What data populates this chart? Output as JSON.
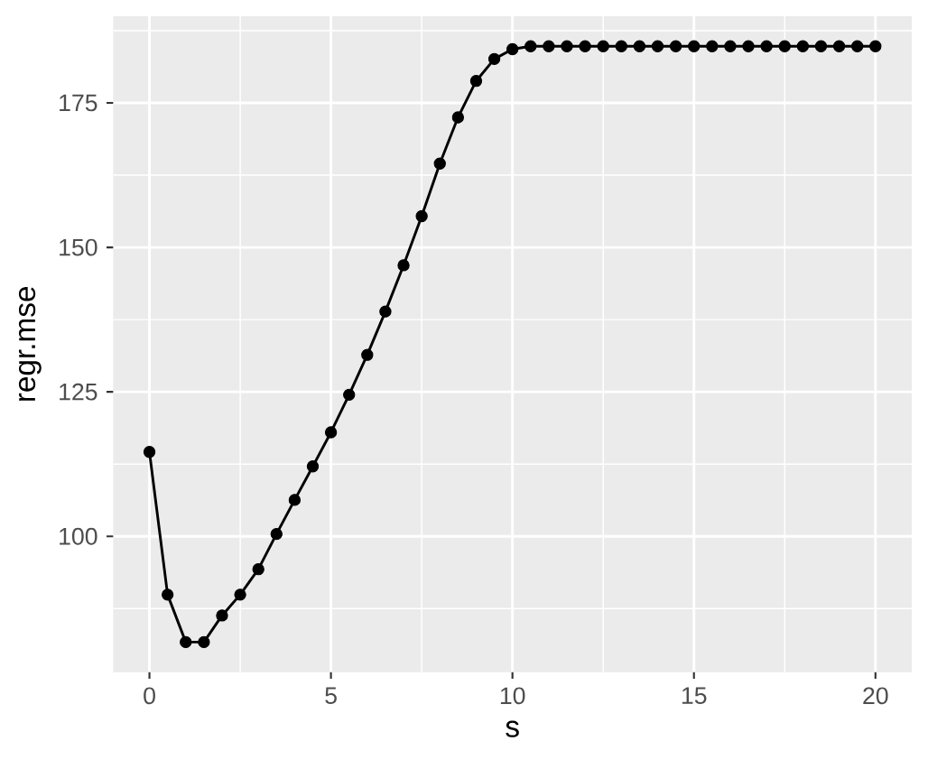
{
  "chart_data": {
    "type": "line",
    "xlabel": "s",
    "ylabel": "regr.mse",
    "x": [
      0,
      0.5,
      1,
      1.5,
      2,
      2.5,
      3,
      3.5,
      4,
      4.5,
      5,
      5.5,
      6,
      6.5,
      7,
      7.5,
      8,
      8.5,
      9,
      9.5,
      10,
      10.5,
      11,
      11.5,
      12,
      12.5,
      13,
      13.5,
      14,
      14.5,
      15,
      15.5,
      16,
      16.5,
      17,
      17.5,
      18,
      18.5,
      19,
      19.5,
      20
    ],
    "series": [
      {
        "color": "#000000",
        "values": [
          114.6,
          89.9,
          81.7,
          81.7,
          86.3,
          89.9,
          94.3,
          100.4,
          106.3,
          112.1,
          118.0,
          124.5,
          131.4,
          138.9,
          146.9,
          155.4,
          164.5,
          172.5,
          178.8,
          182.6,
          184.3,
          184.8,
          184.8,
          184.8,
          184.8,
          184.8,
          184.8,
          184.8,
          184.8,
          184.8,
          184.8,
          184.8,
          184.8,
          184.8,
          184.8,
          184.8,
          184.8,
          184.8,
          184.8,
          184.8,
          184.8
        ]
      }
    ],
    "xlim": [
      -1,
      21
    ],
    "ylim": [
      76.5,
      190
    ],
    "xticks": [
      0,
      5,
      10,
      15,
      20
    ],
    "yticks": [
      100,
      125,
      150,
      175
    ],
    "grid": true,
    "marker": "circle",
    "line_style": "solid"
  }
}
